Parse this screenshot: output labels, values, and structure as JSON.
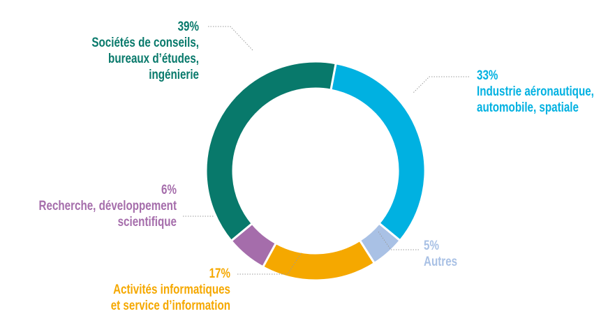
{
  "chart_data": {
    "type": "pie",
    "categories": [
      [
        "Industrie aéronautique,",
        "automobile, spatiale"
      ],
      [
        "Autres"
      ],
      [
        "Activités informatiques",
        "et service d’information"
      ],
      [
        "Recherche, développement",
        "scientifique"
      ],
      [
        "Sociétés de conseils,",
        "bureaux d’études,",
        "ingénierie"
      ]
    ],
    "values": [
      33,
      5,
      17,
      6,
      39
    ],
    "value_labels": [
      "33%",
      "5%",
      "17%",
      "6%",
      "39%"
    ],
    "colors": [
      "#00b1e1",
      "#a9c1e5",
      "#f5a800",
      "#a56dab",
      "#08796b"
    ]
  }
}
